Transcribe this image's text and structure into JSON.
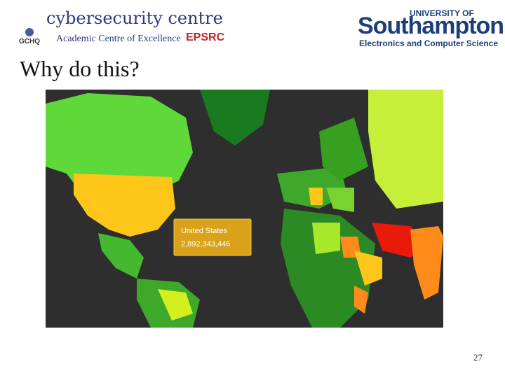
{
  "header": {
    "centre": "cybersecurity centre",
    "gchq": "GCHQ",
    "ace": "Academic Centre of Excellence",
    "epsrc": "EPSRC",
    "university_of": "UNIVERSITY OF",
    "university": "Southampton",
    "department": "Electronics and Computer Science"
  },
  "slide": {
    "title": "Why do this?",
    "page_number": "27"
  },
  "map": {
    "tooltip": {
      "country": "United States",
      "count": "2,892,343,446"
    }
  }
}
